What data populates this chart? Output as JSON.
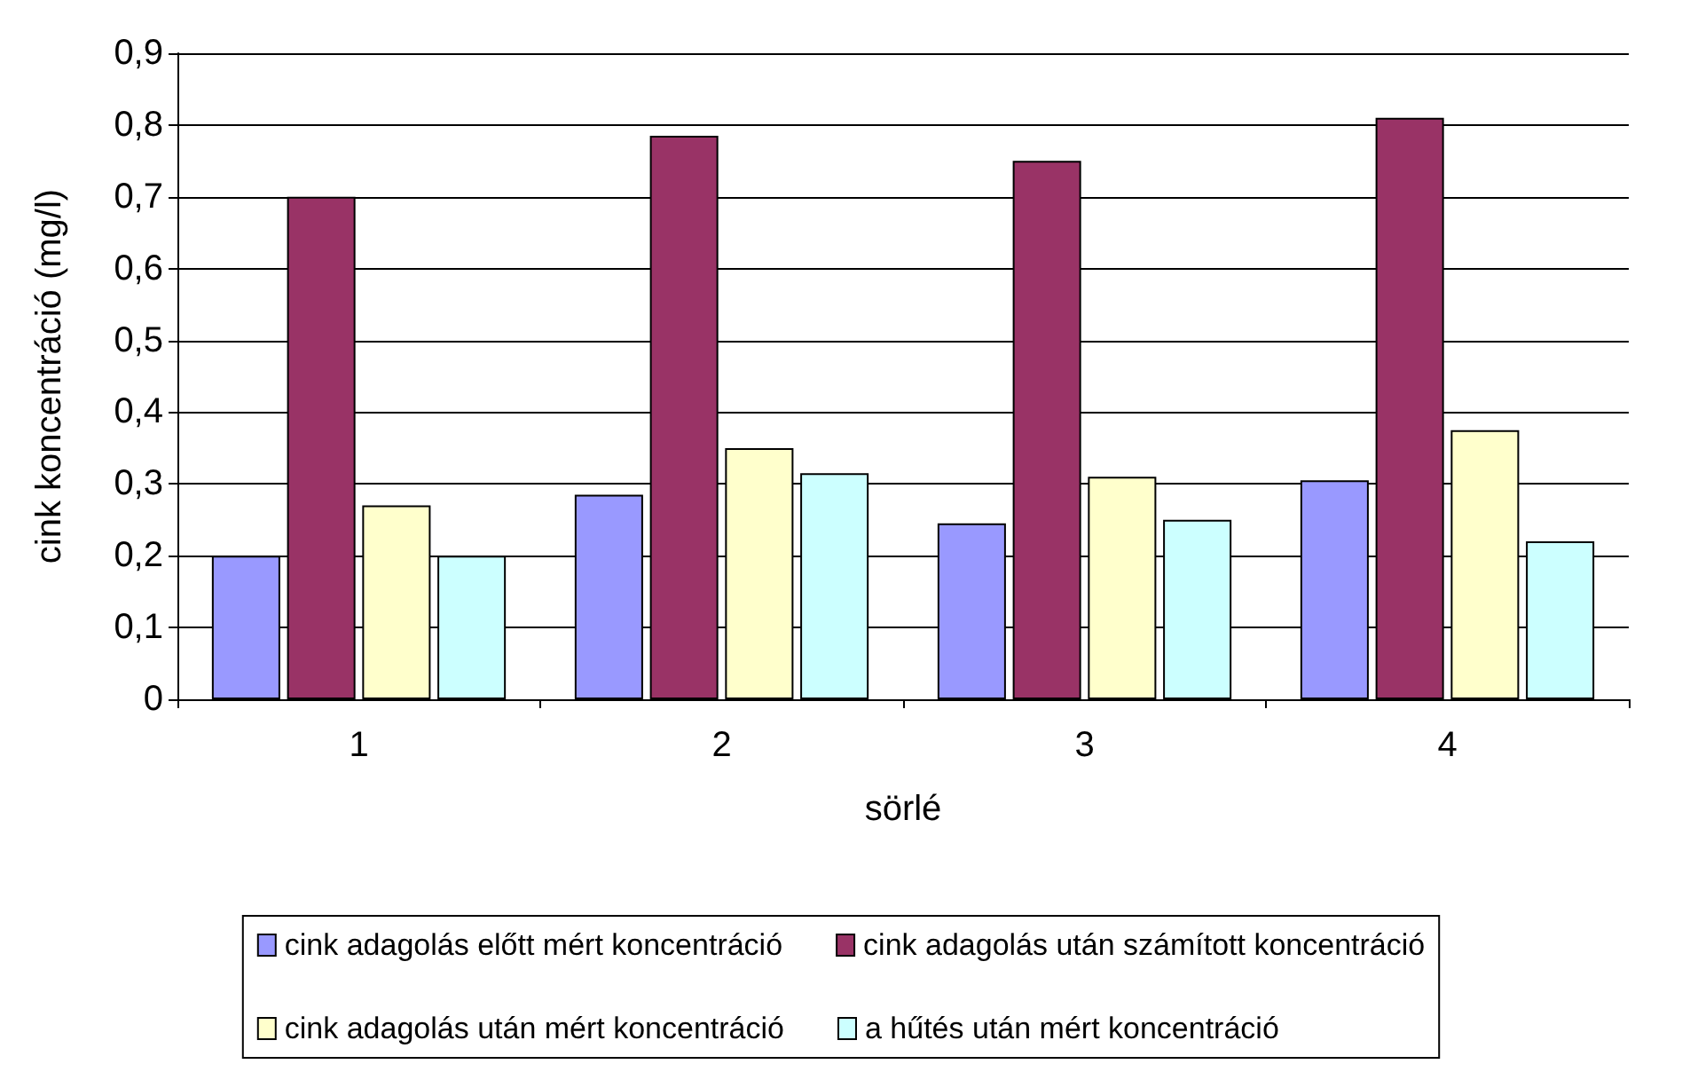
{
  "chart_data": {
    "type": "bar",
    "xlabel": "sörlé",
    "ylabel": "cink koncentráció (mg/l)",
    "categories": [
      "1",
      "2",
      "3",
      "4"
    ],
    "series": [
      {
        "name": "cink adagolás előtt mért koncentráció",
        "color": "#9999ff",
        "values": [
          0.2,
          0.285,
          0.245,
          0.305
        ]
      },
      {
        "name": "cink adagolás után számított koncentráció",
        "color": "#993366",
        "values": [
          0.7,
          0.785,
          0.75,
          0.81
        ]
      },
      {
        "name": "cink adagolás után mért koncentráció",
        "color": "#ffffcc",
        "values": [
          0.27,
          0.35,
          0.31,
          0.375
        ]
      },
      {
        "name": "a hűtés után mért koncentráció",
        "color": "#ccffff",
        "values": [
          0.2,
          0.315,
          0.25,
          0.22
        ]
      }
    ],
    "ylim": [
      0,
      0.9
    ],
    "yticks": [
      {
        "value": 0,
        "label": "0"
      },
      {
        "value": 0.1,
        "label": "0,1"
      },
      {
        "value": 0.2,
        "label": "0,2"
      },
      {
        "value": 0.3,
        "label": "0,3"
      },
      {
        "value": 0.4,
        "label": "0,4"
      },
      {
        "value": 0.5,
        "label": "0,5"
      },
      {
        "value": 0.6,
        "label": "0,6"
      },
      {
        "value": 0.7,
        "label": "0,7"
      },
      {
        "value": 0.8,
        "label": "0,8"
      },
      {
        "value": 0.9,
        "label": "0,9"
      }
    ],
    "grid": "y",
    "legend": "bottom"
  }
}
